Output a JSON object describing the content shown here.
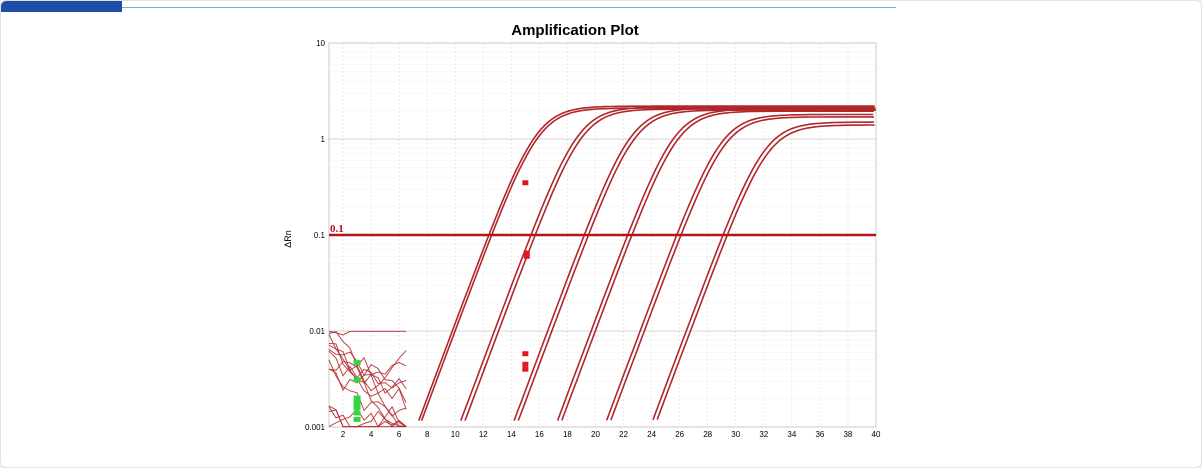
{
  "colors": {
    "accent_bar": "#1f4ea8",
    "accent_rule": "#7fa7dc",
    "curve": "#b0262b",
    "threshold": "#b3141a",
    "ct_marker": "#e0191f",
    "baseline_marker": "#33d63c",
    "grid": "#d9d9d9"
  },
  "chart_data": {
    "type": "line",
    "title": "Amplification Plot",
    "xlabel": "",
    "ylabel": "ΔRn",
    "y_scale": "log",
    "xlim": [
      1,
      40
    ],
    "ylim": [
      0.001,
      10
    ],
    "x_ticks": [
      "2",
      "4",
      "6",
      "8",
      "10",
      "12",
      "14",
      "16",
      "18",
      "20",
      "22",
      "24",
      "26",
      "28",
      "30",
      "32",
      "34",
      "36",
      "38",
      "40"
    ],
    "y_ticks": [
      "10",
      "1",
      "0.1",
      "0.01",
      "0.001"
    ],
    "grid": "on",
    "threshold": {
      "value": 0.1,
      "label": "0.1"
    },
    "series": [
      {
        "ct": 12.4,
        "plateau": 2.2
      },
      {
        "ct": 12.6,
        "plateau": 2.1
      },
      {
        "ct": 15.4,
        "plateau": 2.15
      },
      {
        "ct": 15.7,
        "plateau": 2.05
      },
      {
        "ct": 19.2,
        "plateau": 2.1
      },
      {
        "ct": 19.5,
        "plateau": 2.0
      },
      {
        "ct": 22.3,
        "plateau": 2.05
      },
      {
        "ct": 22.6,
        "plateau": 1.95
      },
      {
        "ct": 25.8,
        "plateau": 1.8
      },
      {
        "ct": 26.1,
        "plateau": 1.7
      },
      {
        "ct": 29.1,
        "plateau": 1.5
      },
      {
        "ct": 29.4,
        "plateau": 1.4
      }
    ],
    "ct_markers": [
      {
        "x": 15.0,
        "y": 0.35
      },
      {
        "x": 15.1,
        "y": 0.065
      },
      {
        "x": 15.1,
        "y": 0.06
      },
      {
        "x": 15.0,
        "y": 0.0058
      },
      {
        "x": 15.0,
        "y": 0.0045
      },
      {
        "x": 15.0,
        "y": 0.004
      }
    ],
    "baseline_markers": [
      {
        "x": 3.0,
        "y": 0.0047
      },
      {
        "x": 3.0,
        "y": 0.0031
      },
      {
        "x": 3.0,
        "y": 0.002
      },
      {
        "x": 3.0,
        "y": 0.0018
      },
      {
        "x": 3.0,
        "y": 0.0016
      },
      {
        "x": 3.0,
        "y": 0.0014
      },
      {
        "x": 3.0,
        "y": 0.0012
      }
    ]
  }
}
